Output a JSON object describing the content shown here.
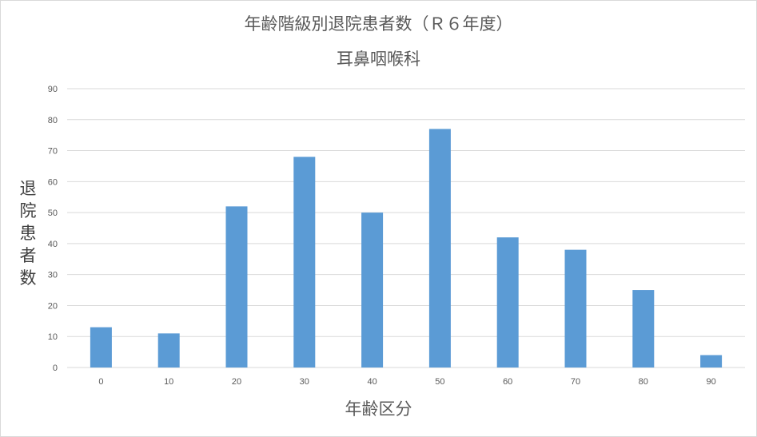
{
  "chart_data": {
    "type": "bar",
    "title": "年齢階級別退院患者数（Ｒ６年度）",
    "subtitle": "耳鼻咽喉科",
    "xlabel": "年齢区分",
    "ylabel": "退院患者数",
    "categories": [
      "0",
      "10",
      "20",
      "30",
      "40",
      "50",
      "60",
      "70",
      "80",
      "90"
    ],
    "values": [
      13,
      11,
      52,
      68,
      50,
      77,
      42,
      38,
      25,
      4
    ],
    "ylim": [
      0,
      90
    ],
    "yticks": [
      0,
      10,
      20,
      30,
      40,
      50,
      60,
      70,
      80,
      90
    ],
    "grid": true,
    "legend": "none",
    "bar_color": "#5b9bd5",
    "grid_color": "#d9d9d9"
  }
}
